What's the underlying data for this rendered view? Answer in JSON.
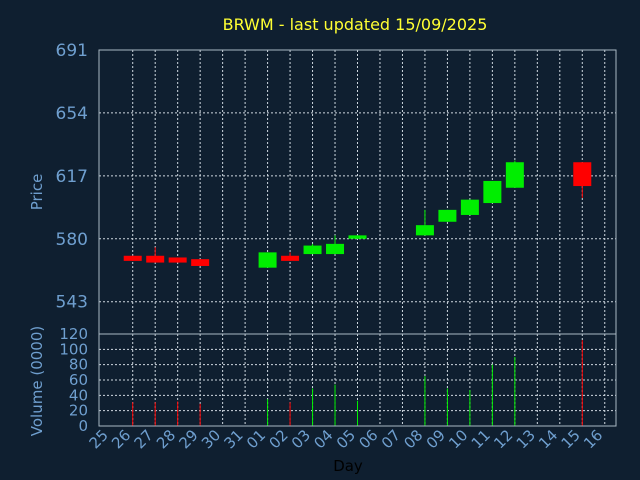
{
  "chart_data": [
    {
      "type": "candlestick",
      "title": "BRWM - last updated 15/09/2025",
      "ylabel": "Price",
      "ylim": [
        524,
        691
      ],
      "yticks": [
        543,
        580,
        617,
        654,
        691
      ],
      "grid": true,
      "colors": {
        "up": "#00ee00",
        "down": "#ff0000",
        "background": "#0f1f30",
        "axis_text": "#6f9fcf",
        "title": "#ffff33"
      },
      "candles": [
        {
          "day": "26",
          "open": 570,
          "close": 567,
          "high": 570,
          "low": 567
        },
        {
          "day": "27",
          "open": 570,
          "close": 566,
          "high": 575,
          "low": 566
        },
        {
          "day": "28",
          "open": 569,
          "close": 566,
          "high": 569,
          "low": 566
        },
        {
          "day": "29",
          "open": 568,
          "close": 564,
          "high": 568,
          "low": 564
        },
        {
          "day": "01",
          "open": 563,
          "close": 572,
          "high": 572,
          "low": 563
        },
        {
          "day": "02",
          "open": 570,
          "close": 567,
          "high": 572,
          "low": 567
        },
        {
          "day": "03",
          "open": 571,
          "close": 576,
          "high": 577,
          "low": 571
        },
        {
          "day": "04",
          "open": 571,
          "close": 577,
          "high": 582,
          "low": 571
        },
        {
          "day": "05",
          "open": 580,
          "close": 582,
          "high": 582,
          "low": 580
        },
        {
          "day": "08",
          "open": 582,
          "close": 588,
          "high": 597,
          "low": 582
        },
        {
          "day": "09",
          "open": 590,
          "close": 597,
          "high": 597,
          "low": 590
        },
        {
          "day": "10",
          "open": 594,
          "close": 603,
          "high": 603,
          "low": 594
        },
        {
          "day": "11",
          "open": 601,
          "close": 614,
          "high": 614,
          "low": 601
        },
        {
          "day": "12",
          "open": 610,
          "close": 625,
          "high": 626,
          "low": 610
        },
        {
          "day": "15",
          "open": 625,
          "close": 611,
          "high": 625,
          "low": 604
        }
      ]
    },
    {
      "type": "bar",
      "ylabel": "Volume (0000)",
      "xlabel": "Day",
      "ylim": [
        0,
        120
      ],
      "yticks": [
        0,
        20,
        40,
        60,
        80,
        100,
        120
      ],
      "categories": [
        "25",
        "26",
        "27",
        "28",
        "29",
        "30",
        "31",
        "01",
        "02",
        "03",
        "04",
        "05",
        "06",
        "07",
        "08",
        "09",
        "10",
        "11",
        "12",
        "13",
        "14",
        "15",
        "16"
      ],
      "values": [
        0,
        31,
        31,
        32,
        29,
        0,
        0,
        35,
        31,
        49,
        54,
        33,
        0,
        0,
        65,
        49,
        47,
        80,
        90,
        0,
        0,
        112,
        0
      ],
      "colors": [
        "",
        "#ff0000",
        "#ff0000",
        "#ff0000",
        "#ff0000",
        "",
        "",
        "#00ee00",
        "#ff0000",
        "#00ee00",
        "#00ee00",
        "#00ee00",
        "",
        "",
        "#00ee00",
        "#00ee00",
        "#00ee00",
        "#00ee00",
        "#00ee00",
        "",
        "",
        "#ff0000",
        ""
      ]
    }
  ]
}
